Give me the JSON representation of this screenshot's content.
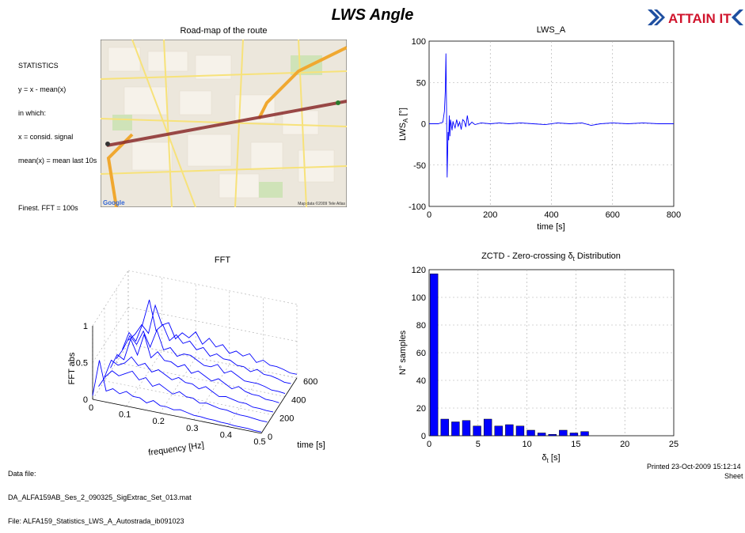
{
  "page": {
    "title": "LWS Angle",
    "logo_text": "ATTAIN IT",
    "stats_lines": [
      "STATISTICS",
      "y = x - mean(x)",
      "in which:",
      "x = consid. signal",
      "mean(x) = mean last 10s",
      "",
      "Finest. FFT = 100s"
    ],
    "map_title": "Road-map of the route",
    "map_credit": "Map data ©2009 Tele Atlas",
    "map_brand": "Google",
    "footer_lines": [
      "Data file:",
      "DA_ALFA159AB_Ses_2_090325_SigExtrac_Set_013.mat",
      "File: ALFA159_Statistics_LWS_A_Autostrada_ib091023"
    ],
    "printed": "Printed 23-Oct-2009 15:12:14",
    "sheet": "Sheet",
    "colors": {
      "signal": "#0000ff",
      "bar": "#0000ff",
      "map_road": "#f5a623",
      "route": "#8a2a2a"
    }
  },
  "chart_data": [
    {
      "type": "line",
      "title": "LWS_A",
      "xlabel": "time [s]",
      "ylabel_main": "LWS",
      "ylabel_sub": "A",
      "ylabel_unit": " [°]",
      "xlim": [
        0,
        800
      ],
      "ylim": [
        -100,
        100
      ],
      "xticks": [
        "0",
        "200",
        "400",
        "600",
        "800"
      ],
      "yticks": [
        "-100",
        "-50",
        "0",
        "50",
        "100"
      ],
      "grid": true,
      "series": [
        {
          "x": [
            0,
            30,
            45,
            50,
            53,
            55,
            57,
            59,
            62,
            64,
            66,
            68,
            70,
            72,
            75,
            78,
            80,
            85,
            90,
            95,
            100,
            105,
            110,
            115,
            120,
            125,
            130,
            140,
            150,
            170,
            200,
            230,
            260,
            300,
            340,
            380,
            420,
            460,
            500,
            530,
            560,
            600,
            650,
            700,
            750,
            800
          ],
          "y": [
            0,
            0,
            2,
            15,
            40,
            85,
            20,
            -65,
            -10,
            -20,
            10,
            -15,
            5,
            0,
            -8,
            3,
            0,
            -5,
            5,
            -3,
            2,
            -7,
            5,
            3,
            -4,
            10,
            -2,
            2,
            -1,
            1,
            0,
            1,
            0,
            1,
            0,
            -1,
            1,
            0,
            1,
            -2,
            0,
            1,
            0,
            1,
            0,
            0
          ]
        }
      ]
    },
    {
      "type": "bar",
      "title_prefix": "ZCTD - Zero-crossing δ",
      "title_sub": "t",
      "title_suffix": " Distribution",
      "xlabel_main": "δ",
      "xlabel_sub": "t",
      "xlabel_unit": " [s]",
      "ylabel": "N° samples",
      "xlim": [
        0,
        25
      ],
      "ylim": [
        0,
        120
      ],
      "xticks": [
        "0",
        "5",
        "10",
        "15",
        "20",
        "25"
      ],
      "yticks": [
        "0",
        "20",
        "40",
        "60",
        "80",
        "100",
        "120"
      ],
      "grid": true,
      "bar_width": 0.8,
      "x": [
        0.5,
        1.6,
        2.7,
        3.8,
        4.9,
        6.0,
        7.1,
        8.2,
        9.3,
        10.4,
        11.5,
        12.6,
        13.7,
        14.8,
        15.9,
        17.0,
        18.1
      ],
      "values": [
        117,
        12,
        10,
        11,
        7,
        12,
        7,
        8,
        7,
        4,
        2,
        1,
        4,
        2,
        3,
        0,
        0
      ]
    },
    {
      "type": "line",
      "title": "FFT",
      "projection": "3d-waterfall",
      "xlabel": "frequency [Hz]",
      "ylabel": "time [s]",
      "zlabel": "FFT abs",
      "xlim": [
        0,
        0.5
      ],
      "ylim": [
        0,
        600
      ],
      "zlim": [
        0,
        1
      ],
      "xticks": [
        "0",
        "0.1",
        "0.2",
        "0.3",
        "0.4",
        "0.5"
      ],
      "yticks": [
        "0",
        "200",
        "400",
        "600"
      ],
      "zticks": [
        "0",
        "0.5",
        "1"
      ],
      "grid": true,
      "freq": [
        0,
        0.02,
        0.04,
        0.06,
        0.08,
        0.1,
        0.12,
        0.14,
        0.16,
        0.18,
        0.2,
        0.22,
        0.24,
        0.26,
        0.28,
        0.3,
        0.32,
        0.34,
        0.36,
        0.38,
        0.4,
        0.42,
        0.44,
        0.46,
        0.48,
        0.5
      ],
      "series": [
        {
          "t": 600,
          "values": [
            0.05,
            0.15,
            0.3,
            0.2,
            0.6,
            0.35,
            0.4,
            0.2,
            0.3,
            0.25,
            0.35,
            0.2,
            0.3,
            0.2,
            0.25,
            0.15,
            0.2,
            0.15,
            0.2,
            0.1,
            0.15,
            0.1,
            0.1,
            0.08,
            0.05,
            0.05
          ]
        },
        {
          "t": 500,
          "values": [
            0.05,
            0.3,
            0.2,
            0.45,
            0.8,
            0.4,
            0.5,
            0.3,
            0.4,
            0.3,
            0.35,
            0.25,
            0.3,
            0.2,
            0.25,
            0.2,
            0.2,
            0.15,
            0.15,
            0.1,
            0.15,
            0.1,
            0.1,
            0.08,
            0.05,
            0.05
          ]
        },
        {
          "t": 400,
          "values": [
            0.05,
            0.2,
            0.4,
            0.3,
            0.5,
            0.3,
            0.55,
            0.3,
            0.35,
            0.25,
            0.3,
            0.3,
            0.25,
            0.2,
            0.2,
            0.25,
            0.15,
            0.2,
            0.15,
            0.1,
            0.1,
            0.1,
            0.08,
            0.05,
            0.05,
            0.04
          ]
        },
        {
          "t": 300,
          "values": [
            0.05,
            0.25,
            0.2,
            0.5,
            0.3,
            0.6,
            0.3,
            0.4,
            0.3,
            0.3,
            0.25,
            0.3,
            0.2,
            0.25,
            0.2,
            0.15,
            0.2,
            0.15,
            0.1,
            0.15,
            0.1,
            0.08,
            0.08,
            0.05,
            0.05,
            0.04
          ]
        },
        {
          "t": 200,
          "values": [
            0.05,
            0.3,
            0.25,
            0.3,
            0.4,
            0.3,
            0.35,
            0.25,
            0.3,
            0.25,
            0.2,
            0.25,
            0.2,
            0.2,
            0.15,
            0.2,
            0.15,
            0.1,
            0.12,
            0.1,
            0.08,
            0.08,
            0.05,
            0.05,
            0.04,
            0.04
          ]
        },
        {
          "t": 100,
          "values": [
            0.05,
            0.2,
            0.3,
            0.25,
            0.3,
            0.35,
            0.25,
            0.3,
            0.2,
            0.25,
            0.2,
            0.15,
            0.2,
            0.15,
            0.15,
            0.1,
            0.12,
            0.1,
            0.08,
            0.08,
            0.06,
            0.05,
            0.05,
            0.04,
            0.03,
            0.03
          ]
        },
        {
          "t": 0,
          "values": [
            0.05,
            0.55,
            0.15,
            0.2,
            0.15,
            0.2,
            0.15,
            0.15,
            0.1,
            0.15,
            0.1,
            0.1,
            0.08,
            0.1,
            0.08,
            0.06,
            0.06,
            0.05,
            0.05,
            0.04,
            0.04,
            0.03,
            0.03,
            0.03,
            0.02,
            0.02
          ]
        }
      ]
    }
  ]
}
